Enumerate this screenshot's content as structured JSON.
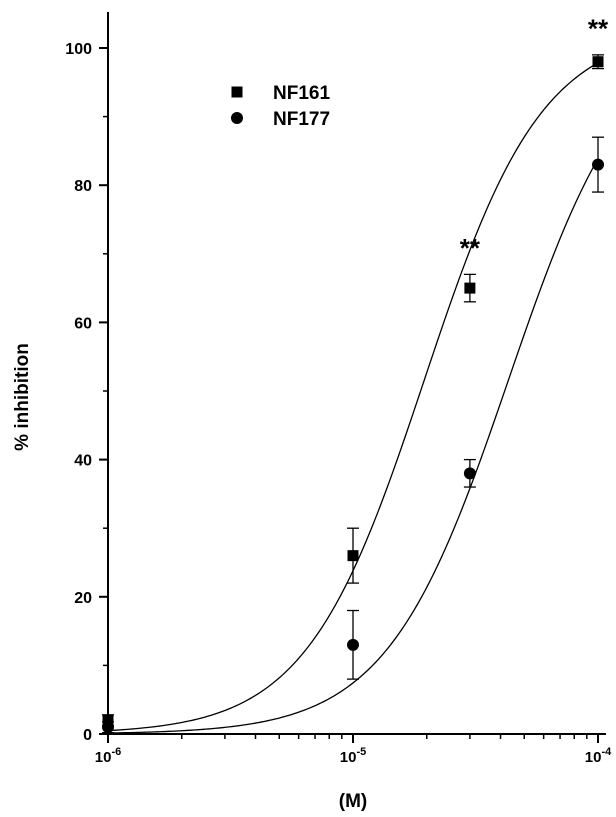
{
  "chart_data": {
    "type": "scatter",
    "xlabel": "(M)",
    "ylabel": "% inhibition",
    "x_scale": "log",
    "xlim": [
      1e-06,
      0.0001
    ],
    "ylim": [
      0,
      105
    ],
    "x_ticks": [
      {
        "value": 1e-06,
        "base": "10",
        "exp": "-6"
      },
      {
        "value": 1e-05,
        "base": "10",
        "exp": "-5"
      },
      {
        "value": 0.0001,
        "base": "10",
        "exp": "-4"
      }
    ],
    "y_ticks": [
      0,
      20,
      40,
      60,
      80,
      100
    ],
    "grid": false,
    "legend_position": "top-left",
    "series": [
      {
        "name": "NF161",
        "marker": "square",
        "points": [
          {
            "x": 1e-06,
            "y": 2,
            "err": 0.8
          },
          {
            "x": 1e-05,
            "y": 26,
            "err": 4
          },
          {
            "x": 3e-05,
            "y": 65,
            "err": 2
          },
          {
            "x": 0.0001,
            "y": 98,
            "err": 1
          }
        ],
        "fit": {
          "ic50": 1.95e-05,
          "hill": 1.8,
          "top": 103,
          "bottom": 0
        }
      },
      {
        "name": "NF177",
        "marker": "circle",
        "points": [
          {
            "x": 1e-06,
            "y": 1,
            "err": 0.8
          },
          {
            "x": 1e-05,
            "y": 13,
            "err": 5
          },
          {
            "x": 3e-05,
            "y": 38,
            "err": 2
          },
          {
            "x": 0.0001,
            "y": 83,
            "err": 4
          }
        ],
        "fit": {
          "ic50": 4.3e-05,
          "hill": 1.75,
          "top": 103,
          "bottom": 0
        }
      }
    ],
    "annotations": [
      {
        "text": "**",
        "x": 3e-05,
        "y": 71
      },
      {
        "text": "**",
        "x": 0.0001,
        "y": 103
      }
    ]
  }
}
